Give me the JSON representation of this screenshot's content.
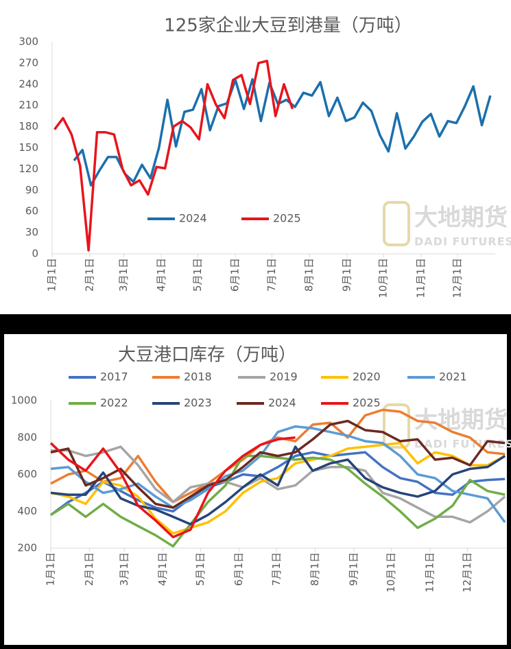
{
  "chart_data": [
    {
      "type": "line",
      "title": "125家企业大豆到港量（万吨）",
      "watermark": "大地期货",
      "watermark_sub": "DADI FUTURES",
      "xlim": [
        0,
        365
      ],
      "xticks": [
        {
          "value": 0,
          "label": "1月1日"
        },
        {
          "value": 31,
          "label": "2月1日"
        },
        {
          "value": 59,
          "label": "3月1日"
        },
        {
          "value": 90,
          "label": "4月1日"
        },
        {
          "value": 120,
          "label": "5月1日"
        },
        {
          "value": 151,
          "label": "6月1日"
        },
        {
          "value": 181,
          "label": "7月1日"
        },
        {
          "value": 212,
          "label": "8月1日"
        },
        {
          "value": 243,
          "label": "9月1日"
        },
        {
          "value": 273,
          "label": "10月1日"
        },
        {
          "value": 304,
          "label": "11月1日"
        },
        {
          "value": 334,
          "label": "12月1日"
        }
      ],
      "ylim": [
        0,
        300
      ],
      "yticks": [
        0,
        30,
        60,
        90,
        120,
        150,
        180,
        210,
        240,
        270,
        300
      ],
      "series": [
        {
          "name": "2024",
          "color": "#1b6fad",
          "x": [
            18,
            25,
            32,
            39,
            46,
            53,
            60,
            67,
            74,
            81,
            88,
            95,
            102,
            109,
            116,
            123,
            130,
            137,
            144,
            151,
            158,
            165,
            172,
            179,
            186,
            193,
            200,
            207,
            214,
            221,
            228,
            235,
            242,
            249,
            256,
            263,
            270,
            277,
            284,
            291,
            298,
            305,
            312,
            319,
            326,
            333,
            340,
            347,
            354,
            361
          ],
          "values": [
            132,
            147,
            97,
            118,
            137,
            137,
            113,
            102,
            126,
            107,
            150,
            218,
            152,
            201,
            204,
            233,
            175,
            209,
            213,
            246,
            205,
            247,
            188,
            242,
            212,
            218,
            208,
            228,
            224,
            243,
            195,
            221,
            188,
            193,
            214,
            202,
            168,
            145,
            199,
            149,
            166,
            187,
            198,
            166,
            188,
            185,
            209,
            237,
            182,
            224
          ]
        },
        {
          "name": "2025",
          "color": "#e8141b",
          "x": [
            2,
            9,
            16,
            23,
            30,
            37,
            44,
            51,
            58,
            65,
            72,
            79,
            86,
            93,
            100,
            107,
            114,
            121,
            128,
            135,
            142,
            149,
            156,
            163,
            170,
            177,
            184,
            191,
            198
          ],
          "values": [
            176,
            192,
            169,
            125,
            5,
            172,
            172,
            169,
            120,
            97,
            104,
            84,
            123,
            121,
            180,
            188,
            179,
            162,
            240,
            211,
            192,
            246,
            253,
            212,
            270,
            273,
            195,
            240,
            205
          ]
        }
      ]
    },
    {
      "type": "line",
      "title": "大豆港口库存（万吨）",
      "watermark": "大地期货",
      "watermark_sub": "DADI FUTURES",
      "xlim": [
        0,
        365
      ],
      "xticks": [
        {
          "value": 0,
          "label": "1月1日"
        },
        {
          "value": 31,
          "label": "2月1日"
        },
        {
          "value": 59,
          "label": "3月1日"
        },
        {
          "value": 90,
          "label": "4月1日"
        },
        {
          "value": 120,
          "label": "5月1日"
        },
        {
          "value": 151,
          "label": "6月1日"
        },
        {
          "value": 181,
          "label": "7月1日"
        },
        {
          "value": 212,
          "label": "8月1日"
        },
        {
          "value": 243,
          "label": "9月1日"
        },
        {
          "value": 273,
          "label": "10月1日"
        },
        {
          "value": 304,
          "label": "11月1日"
        },
        {
          "value": 334,
          "label": "12月1日"
        }
      ],
      "ylim": [
        200,
        1000
      ],
      "yticks": [
        200,
        400,
        600,
        800,
        1000
      ],
      "series": [
        {
          "name": "2017",
          "color": "#4472c4",
          "x": [
            0,
            14,
            28,
            42,
            56,
            70,
            84,
            98,
            112,
            126,
            140,
            154,
            168,
            182,
            196,
            210,
            224,
            238,
            252,
            266,
            280,
            294,
            308,
            322,
            336,
            350,
            364
          ],
          "values": [
            380,
            450,
            500,
            560,
            510,
            460,
            420,
            400,
            470,
            530,
            560,
            600,
            590,
            640,
            700,
            720,
            700,
            710,
            720,
            640,
            580,
            560,
            500,
            490,
            560,
            570,
            575
          ]
        },
        {
          "name": "2018",
          "color": "#ed7d31",
          "x": [
            0,
            14,
            28,
            42,
            56,
            70,
            84,
            98,
            112,
            126,
            140,
            154,
            168,
            182,
            196,
            210,
            224,
            238,
            252,
            266,
            280,
            294,
            308,
            322,
            336,
            350,
            364
          ],
          "values": [
            550,
            600,
            620,
            560,
            580,
            700,
            560,
            450,
            500,
            550,
            620,
            680,
            760,
            800,
            780,
            870,
            880,
            800,
            920,
            950,
            940,
            890,
            880,
            830,
            800,
            720,
            710
          ]
        },
        {
          "name": "2019",
          "color": "#a5a5a5",
          "x": [
            0,
            14,
            28,
            42,
            56,
            70,
            84,
            98,
            112,
            126,
            140,
            154,
            168,
            182,
            196,
            210,
            224,
            238,
            252,
            266,
            280,
            294,
            308,
            322,
            336,
            350,
            364
          ],
          "values": [
            730,
            730,
            700,
            720,
            750,
            650,
            520,
            450,
            530,
            550,
            560,
            530,
            580,
            520,
            540,
            620,
            640,
            640,
            620,
            500,
            470,
            420,
            370,
            370,
            340,
            400,
            480
          ]
        },
        {
          "name": "2020",
          "color": "#ffc000",
          "x": [
            0,
            14,
            28,
            42,
            56,
            70,
            84,
            98,
            112,
            126,
            140,
            154,
            168,
            182,
            196,
            210,
            224,
            238,
            252,
            266,
            280,
            294,
            308,
            322,
            336,
            350,
            364
          ],
          "values": [
            500,
            480,
            440,
            560,
            540,
            480,
            360,
            280,
            310,
            340,
            400,
            500,
            560,
            580,
            660,
            680,
            700,
            740,
            750,
            760,
            770,
            660,
            720,
            700,
            650,
            650,
            700
          ]
        },
        {
          "name": "2021",
          "color": "#5b9bd5",
          "x": [
            0,
            14,
            28,
            42,
            56,
            70,
            84,
            98,
            112,
            126,
            140,
            154,
            168,
            182,
            196,
            210,
            224,
            238,
            252,
            266,
            280,
            294,
            308,
            322,
            336,
            350,
            364
          ],
          "values": [
            630,
            640,
            560,
            500,
            520,
            550,
            480,
            420,
            460,
            520,
            590,
            620,
            700,
            830,
            860,
            850,
            830,
            810,
            780,
            770,
            700,
            600,
            580,
            510,
            490,
            470,
            340
          ]
        },
        {
          "name": "2022",
          "color": "#70ad47",
          "x": [
            0,
            14,
            28,
            42,
            56,
            70,
            84,
            98,
            112,
            126,
            140,
            154,
            168,
            182,
            196,
            210,
            224,
            238,
            252,
            266,
            280,
            294,
            308,
            322,
            336,
            350,
            364
          ],
          "values": [
            380,
            440,
            370,
            440,
            370,
            320,
            270,
            210,
            330,
            450,
            540,
            700,
            700,
            690,
            680,
            690,
            680,
            630,
            550,
            480,
            400,
            310,
            360,
            430,
            570,
            510,
            490
          ]
        },
        {
          "name": "2023",
          "color": "#264478",
          "x": [
            0,
            14,
            28,
            42,
            56,
            70,
            84,
            98,
            112,
            126,
            140,
            154,
            168,
            182,
            196,
            210,
            224,
            238,
            252,
            266,
            280,
            294,
            308,
            322,
            336,
            350,
            364
          ],
          "values": [
            500,
            490,
            490,
            610,
            470,
            430,
            410,
            370,
            330,
            380,
            450,
            530,
            600,
            540,
            750,
            620,
            660,
            680,
            580,
            530,
            500,
            480,
            510,
            600,
            630,
            640,
            700
          ]
        },
        {
          "name": "2024",
          "color": "#6b2a22",
          "x": [
            0,
            14,
            28,
            42,
            56,
            70,
            84,
            98,
            112,
            126,
            140,
            154,
            168,
            182,
            196,
            210,
            224,
            238,
            252,
            266,
            280,
            294,
            308,
            322,
            336,
            350,
            364
          ],
          "values": [
            720,
            740,
            540,
            580,
            630,
            530,
            440,
            420,
            480,
            540,
            570,
            640,
            720,
            700,
            720,
            790,
            870,
            890,
            840,
            830,
            780,
            790,
            680,
            690,
            650,
            780,
            770
          ]
        },
        {
          "name": "2025",
          "color": "#e8141b",
          "x": [
            0,
            14,
            28,
            42,
            56,
            70,
            84,
            98,
            112,
            126,
            140,
            154,
            168,
            182,
            196
          ],
          "values": [
            770,
            680,
            620,
            740,
            610,
            430,
            350,
            260,
            300,
            500,
            620,
            700,
            760,
            790,
            800
          ]
        }
      ]
    }
  ]
}
